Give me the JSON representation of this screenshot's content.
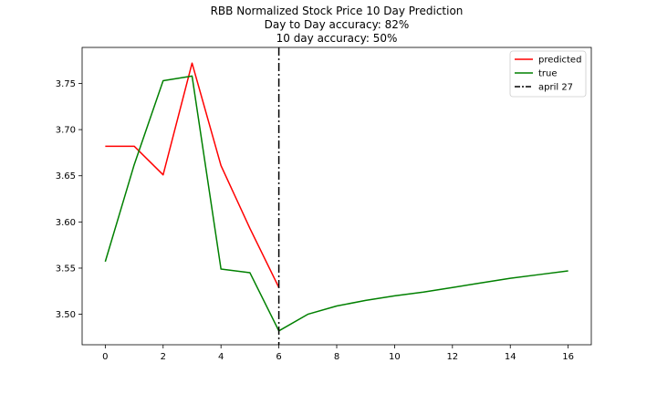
{
  "chart_data": {
    "type": "line",
    "title_lines": [
      "RBB Normalized Stock Price 10 Day Prediction",
      "Day to Day accuracy: 82%",
      "10 day accuracy: 50%"
    ],
    "xlabel": "",
    "ylabel": "",
    "xlim": [
      -0.8,
      16.8
    ],
    "ylim": [
      3.467,
      3.789
    ],
    "xticks": [
      0,
      2,
      4,
      6,
      8,
      10,
      12,
      14,
      16
    ],
    "yticks": [
      3.5,
      3.55,
      3.6,
      3.65,
      3.7,
      3.75
    ],
    "ytick_labels": [
      "3.50",
      "3.55",
      "3.60",
      "3.65",
      "3.70",
      "3.75"
    ],
    "grid": false,
    "legend_position": "top-right",
    "series": [
      {
        "name": "predicted",
        "color": "#ff0000",
        "x": [
          0,
          1,
          2,
          3,
          4,
          5,
          6
        ],
        "y": [
          3.682,
          3.682,
          3.651,
          3.772,
          3.661,
          3.593,
          3.529
        ]
      },
      {
        "name": "true",
        "color": "#008000",
        "x": [
          0,
          1,
          2,
          3,
          4,
          5,
          6,
          7,
          8,
          9,
          10,
          11,
          12,
          13,
          14,
          15,
          16
        ],
        "y": [
          3.557,
          3.662,
          3.753,
          3.758,
          3.549,
          3.545,
          3.482,
          3.5,
          3.509,
          3.515,
          3.52,
          3.524,
          3.529,
          3.534,
          3.539,
          3.543,
          3.547
        ]
      }
    ],
    "vline": {
      "name": "april 27",
      "x": 6,
      "color": "#000000",
      "style": "dash-dot"
    }
  }
}
